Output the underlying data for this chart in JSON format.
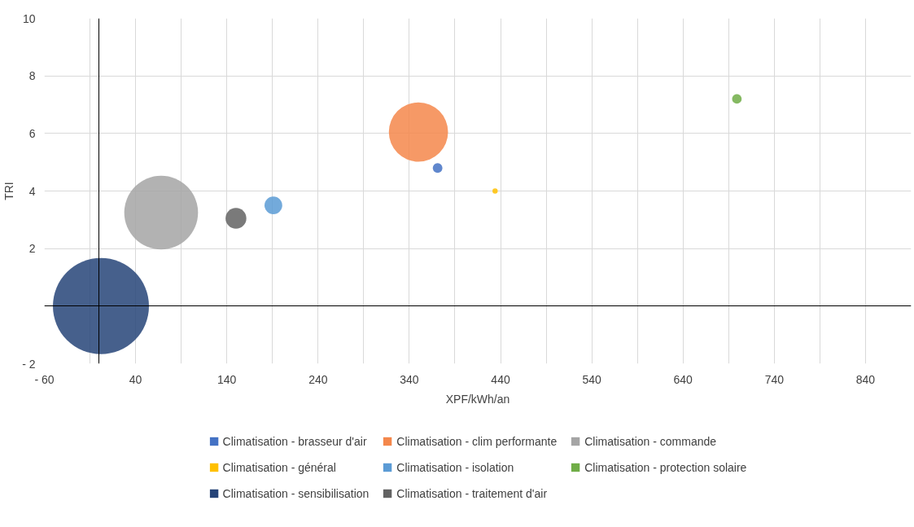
{
  "chart_data": {
    "type": "bubble",
    "xlabel": "XPF/kWh/an",
    "ylabel": "TRI",
    "xlim": [
      -60,
      890
    ],
    "ylim": [
      -2,
      10
    ],
    "xticks": [
      {
        "value": -60,
        "label": "- 60"
      },
      {
        "value": -10,
        "label": null
      },
      40,
      {
        "value": 90,
        "label": null
      },
      140,
      {
        "value": 190,
        "label": null
      },
      240,
      {
        "value": 290,
        "label": null
      },
      340,
      {
        "value": 390,
        "label": null
      },
      440,
      {
        "value": 490,
        "label": null
      },
      540,
      {
        "value": 590,
        "label": null
      },
      640,
      {
        "value": 690,
        "label": null
      },
      740,
      {
        "value": 790,
        "label": null
      },
      840
    ],
    "yticks": [
      {
        "value": -2,
        "label": "- 2"
      },
      {
        "value": 0,
        "label": null
      },
      2,
      4,
      6,
      8,
      10
    ],
    "grid": true,
    "legend": "bottom",
    "series": [
      {
        "name": "Climatisation - brasseur d'air",
        "color": "#4472c4",
        "x": [
          371
        ],
        "values": [
          4.8
        ],
        "sizes": [
          0.01
        ]
      },
      {
        "name": "Climatisation - clim performante",
        "color": "#f4874b",
        "x": [
          350
        ],
        "values": [
          6.05
        ],
        "sizes": [
          0.38
        ]
      },
      {
        "name": "Climatisation - commande",
        "color": "#a5a5a5",
        "x": [
          68
        ],
        "values": [
          3.25
        ],
        "sizes": [
          0.59
        ]
      },
      {
        "name": "Climatisation - général",
        "color": "#ffc000",
        "x": [
          434
        ],
        "values": [
          4.0
        ],
        "sizes": [
          0.003
        ]
      },
      {
        "name": "Climatisation - isolation",
        "color": "#5b9bd5",
        "x": [
          191
        ],
        "values": [
          3.5
        ],
        "sizes": [
          0.034
        ]
      },
      {
        "name": "Climatisation - protection solaire",
        "color": "#70ad47",
        "x": [
          699
        ],
        "values": [
          7.2
        ],
        "sizes": [
          0.01
        ]
      },
      {
        "name": "Climatisation - sensibilisation",
        "color": "#264478",
        "x": [
          2
        ],
        "values": [
          0
        ],
        "sizes": [
          1
        ]
      },
      {
        "name": "Climatisation - traitement d'air",
        "color": "#636363",
        "x": [
          150
        ],
        "values": [
          3.05
        ],
        "sizes": [
          0.047
        ]
      }
    ]
  }
}
